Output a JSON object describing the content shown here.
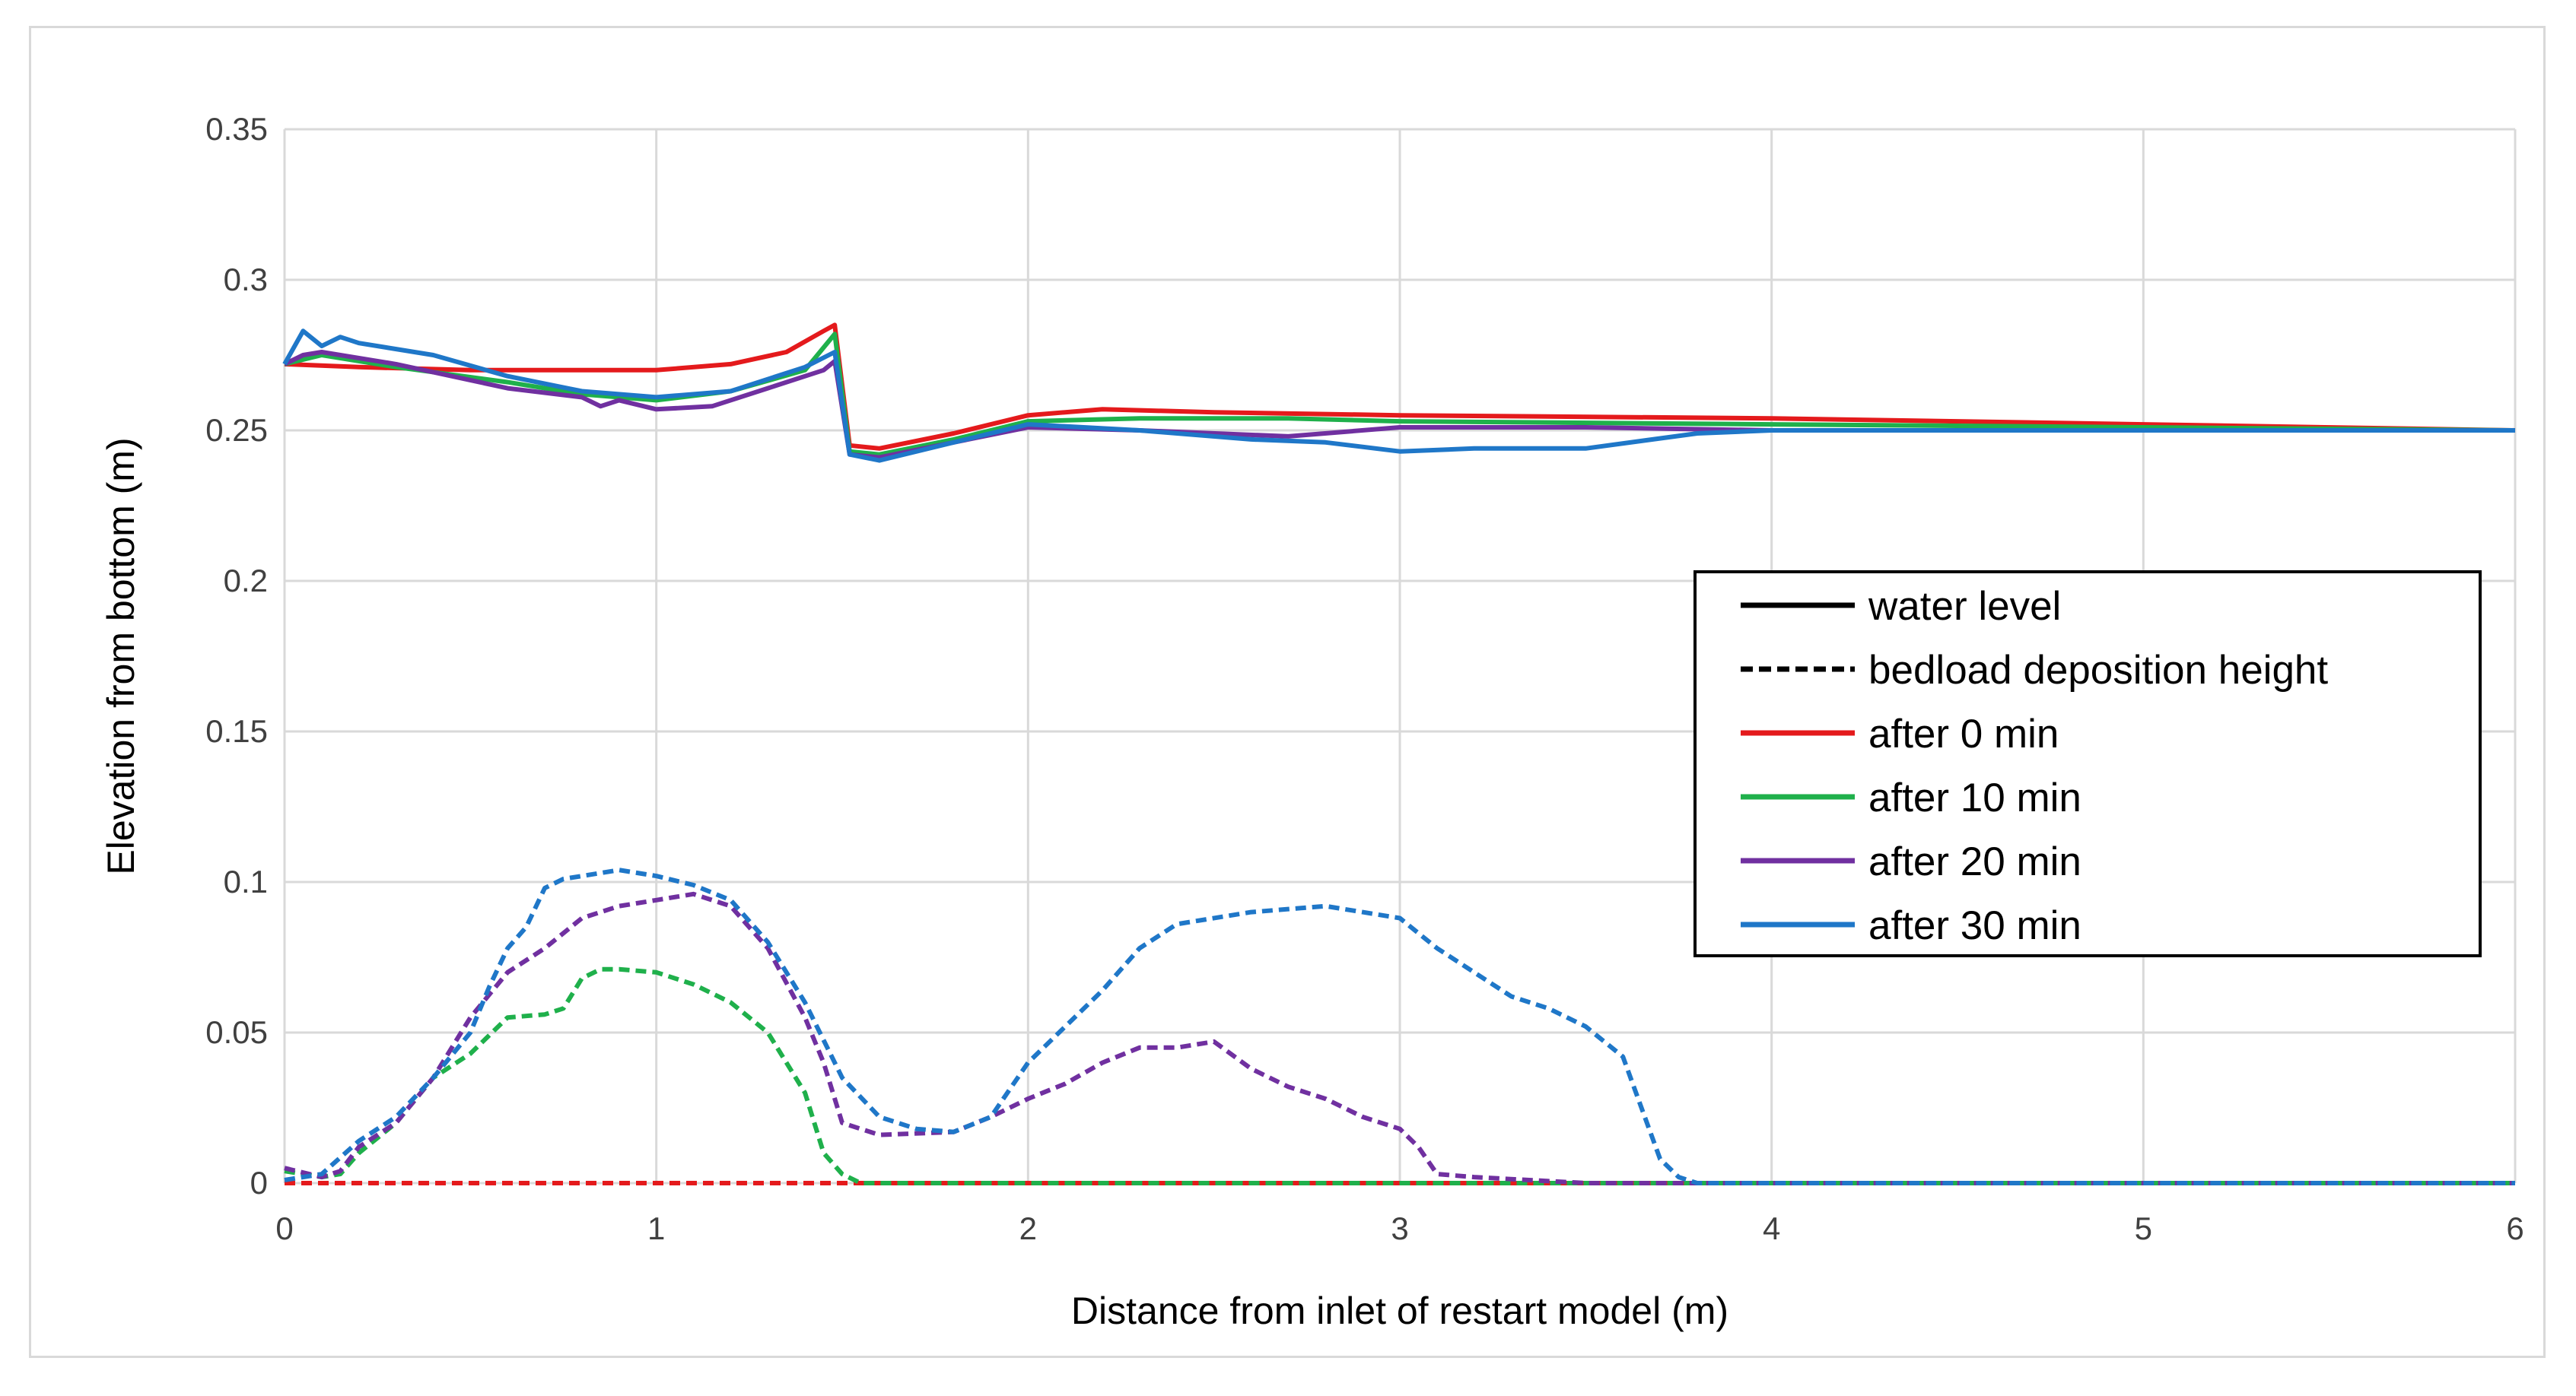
{
  "chart_data": {
    "type": "line",
    "title": "",
    "xlabel": "Distance from inlet of restart model (m)",
    "ylabel": "Elevation from bottom (m)",
    "xlim": [
      0,
      6
    ],
    "ylim": [
      0,
      0.35
    ],
    "xticks": [
      "0",
      "1",
      "2",
      "3",
      "4",
      "5",
      "6"
    ],
    "yticks": [
      "0",
      "0.05",
      "0.1",
      "0.15",
      "0.2",
      "0.25",
      "0.3",
      "0.35"
    ],
    "grid": true,
    "legend_position": "right",
    "legend": [
      {
        "label": "water level",
        "style": "solid",
        "color": "#000000"
      },
      {
        "label": "bedload deposition height",
        "style": "dashed",
        "color": "#000000"
      },
      {
        "label": "after 0 min",
        "style": "solid",
        "color": "#e41a1c"
      },
      {
        "label": "after 10 min",
        "style": "solid",
        "color": "#1fb04b"
      },
      {
        "label": "after 20 min",
        "style": "solid",
        "color": "#7030a0"
      },
      {
        "label": "after 30 min",
        "style": "solid",
        "color": "#1f77c8"
      }
    ],
    "series": [
      {
        "kind": "water",
        "color": "#e41a1c",
        "x": [
          0,
          0.2,
          0.5,
          0.8,
          1.0,
          1.2,
          1.35,
          1.45,
          1.48,
          1.52,
          1.6,
          1.8,
          2.0,
          2.2,
          2.5,
          3.0,
          4.0,
          5.0,
          6.0
        ],
        "y": [
          0.272,
          0.271,
          0.27,
          0.27,
          0.27,
          0.272,
          0.276,
          0.283,
          0.285,
          0.245,
          0.244,
          0.249,
          0.255,
          0.257,
          0.256,
          0.255,
          0.254,
          0.252,
          0.25
        ]
      },
      {
        "kind": "water",
        "color": "#1fb04b",
        "x": [
          0,
          0.1,
          0.3,
          0.6,
          0.8,
          1.0,
          1.2,
          1.4,
          1.48,
          1.52,
          1.6,
          1.8,
          2.0,
          2.3,
          2.7,
          3.0,
          4.0,
          5.0,
          6.0
        ],
        "y": [
          0.272,
          0.275,
          0.271,
          0.266,
          0.262,
          0.26,
          0.263,
          0.27,
          0.282,
          0.243,
          0.242,
          0.247,
          0.253,
          0.254,
          0.254,
          0.253,
          0.252,
          0.251,
          0.25
        ]
      },
      {
        "kind": "water",
        "color": "#7030a0",
        "x": [
          0,
          0.05,
          0.1,
          0.3,
          0.6,
          0.8,
          0.85,
          0.9,
          1.0,
          1.15,
          1.3,
          1.45,
          1.48,
          1.52,
          1.6,
          1.8,
          2.0,
          2.3,
          2.7,
          3.0,
          3.5,
          4.0,
          5.0,
          6.0
        ],
        "y": [
          0.272,
          0.275,
          0.276,
          0.272,
          0.264,
          0.261,
          0.258,
          0.26,
          0.257,
          0.258,
          0.264,
          0.27,
          0.273,
          0.242,
          0.241,
          0.246,
          0.251,
          0.25,
          0.248,
          0.251,
          0.251,
          0.25,
          0.25,
          0.25
        ]
      },
      {
        "kind": "water",
        "color": "#1f77c8",
        "x": [
          0,
          0.05,
          0.1,
          0.15,
          0.2,
          0.4,
          0.6,
          0.8,
          1.0,
          1.2,
          1.4,
          1.48,
          1.52,
          1.6,
          1.8,
          2.0,
          2.3,
          2.6,
          2.8,
          3.0,
          3.2,
          3.5,
          3.8,
          4.0,
          5.0,
          6.0
        ],
        "y": [
          0.272,
          0.283,
          0.278,
          0.281,
          0.279,
          0.275,
          0.268,
          0.263,
          0.261,
          0.263,
          0.271,
          0.276,
          0.242,
          0.24,
          0.246,
          0.252,
          0.25,
          0.247,
          0.246,
          0.243,
          0.244,
          0.244,
          0.249,
          0.25,
          0.25,
          0.25
        ]
      },
      {
        "kind": "bedload",
        "color": "#e41a1c",
        "x": [
          0,
          6.0
        ],
        "y": [
          0.0,
          0.0
        ]
      },
      {
        "kind": "bedload",
        "color": "#1fb04b",
        "x": [
          0,
          0.1,
          0.15,
          0.2,
          0.3,
          0.4,
          0.5,
          0.6,
          0.7,
          0.75,
          0.8,
          0.85,
          0.9,
          1.0,
          1.1,
          1.2,
          1.3,
          1.4,
          1.45,
          1.5,
          1.55,
          6.0
        ],
        "y": [
          0.004,
          0.002,
          0.003,
          0.01,
          0.02,
          0.035,
          0.043,
          0.055,
          0.056,
          0.058,
          0.068,
          0.071,
          0.071,
          0.07,
          0.066,
          0.06,
          0.05,
          0.03,
          0.01,
          0.003,
          0.0,
          0.0
        ]
      },
      {
        "kind": "bedload",
        "color": "#7030a0",
        "x": [
          0,
          0.1,
          0.15,
          0.2,
          0.3,
          0.4,
          0.5,
          0.6,
          0.7,
          0.8,
          0.9,
          1.0,
          1.1,
          1.2,
          1.3,
          1.4,
          1.45,
          1.5,
          1.6,
          1.8,
          1.9,
          2.0,
          2.1,
          2.2,
          2.3,
          2.4,
          2.5,
          2.6,
          2.7,
          2.8,
          2.9,
          3.0,
          3.05,
          3.1,
          3.2,
          3.5,
          6.0
        ],
        "y": [
          0.005,
          0.002,
          0.004,
          0.012,
          0.02,
          0.035,
          0.055,
          0.07,
          0.078,
          0.088,
          0.092,
          0.094,
          0.096,
          0.092,
          0.078,
          0.055,
          0.04,
          0.02,
          0.016,
          0.017,
          0.022,
          0.028,
          0.033,
          0.04,
          0.045,
          0.045,
          0.047,
          0.038,
          0.032,
          0.028,
          0.022,
          0.018,
          0.012,
          0.003,
          0.002,
          0.0,
          0.0
        ]
      },
      {
        "kind": "bedload",
        "color": "#1f77c8",
        "x": [
          0,
          0.1,
          0.2,
          0.3,
          0.4,
          0.5,
          0.55,
          0.6,
          0.65,
          0.7,
          0.75,
          0.8,
          0.9,
          1.0,
          1.1,
          1.2,
          1.3,
          1.4,
          1.5,
          1.6,
          1.7,
          1.8,
          1.9,
          2.0,
          2.1,
          2.2,
          2.3,
          2.4,
          2.6,
          2.8,
          2.9,
          3.0,
          3.1,
          3.2,
          3.3,
          3.4,
          3.5,
          3.6,
          3.65,
          3.7,
          3.75,
          3.8,
          6.0
        ],
        "y": [
          0.001,
          0.003,
          0.014,
          0.022,
          0.035,
          0.05,
          0.065,
          0.078,
          0.085,
          0.098,
          0.101,
          0.102,
          0.104,
          0.102,
          0.099,
          0.094,
          0.08,
          0.06,
          0.035,
          0.022,
          0.018,
          0.017,
          0.022,
          0.04,
          0.052,
          0.064,
          0.078,
          0.086,
          0.09,
          0.092,
          0.09,
          0.088,
          0.078,
          0.07,
          0.062,
          0.058,
          0.052,
          0.042,
          0.025,
          0.008,
          0.002,
          0.0,
          0.0
        ]
      }
    ]
  }
}
